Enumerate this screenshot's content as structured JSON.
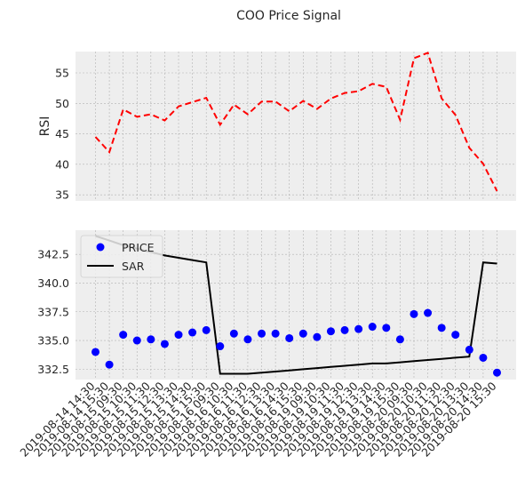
{
  "chart_data": [
    {
      "type": "line",
      "panel": "top",
      "title": "COO Price Signal",
      "xlabel": "",
      "ylabel": "RSI",
      "ylim": [
        34.0,
        58.5
      ],
      "yticks": [
        35,
        40,
        45,
        50,
        55
      ],
      "grid": true,
      "series": [
        {
          "color": "#ff0000",
          "linestyle": "dashed",
          "values": [
            44.5,
            42.0,
            49.0,
            47.8,
            48.2,
            47.2,
            49.5,
            50.2,
            50.9,
            46.5,
            49.8,
            48.2,
            50.3,
            50.3,
            48.7,
            50.4,
            49.1,
            50.8,
            51.7,
            52.0,
            53.2,
            52.7,
            47.3,
            57.4,
            58.3,
            50.8,
            48.1,
            42.7,
            40.1,
            35.6
          ]
        }
      ]
    },
    {
      "type": "line",
      "panel": "bottom",
      "xlabel": "",
      "ylabel": "",
      "ylim": [
        331.6,
        344.6
      ],
      "yticks": [
        332.5,
        335.0,
        337.5,
        340.0,
        342.5
      ],
      "ytick_labels": [
        "332.5",
        "335.0",
        "337.5",
        "340.0",
        "342.5"
      ],
      "grid": true,
      "legend_position": "top-left",
      "categories": [
        "2019-08-14 14:30",
        "2019-08-14 15:30",
        "2019-08-15 09:30",
        "2019-08-15 10:30",
        "2019-08-15 11:30",
        "2019-08-15 12:30",
        "2019-08-15 13:30",
        "2019-08-15 14:30",
        "2019-08-15 15:30",
        "2019-08-16 09:30",
        "2019-08-16 10:30",
        "2019-08-16 11:30",
        "2019-08-16 12:30",
        "2019-08-16 13:30",
        "2019-08-16 14:30",
        "2019-08-16 15:30",
        "2019-08-19 09:30",
        "2019-08-19 10:30",
        "2019-08-19 11:30",
        "2019-08-19 12:30",
        "2019-08-19 13:30",
        "2019-08-19 14:30",
        "2019-08-19 15:30",
        "2019-08-20 09:30",
        "2019-08-20 10:30",
        "2019-08-20 11:30",
        "2019-08-20 12:30",
        "2019-08-20 13:30",
        "2019-08-20 14:30",
        "2019-08-20 15:30"
      ],
      "series": [
        {
          "name": "PRICE",
          "color": "#0000ff",
          "marker": "circle",
          "values": [
            334.0,
            332.9,
            335.5,
            335.0,
            335.1,
            334.7,
            335.5,
            335.7,
            335.9,
            334.5,
            335.6,
            335.1,
            335.6,
            335.6,
            335.2,
            335.6,
            335.3,
            335.8,
            335.9,
            336.0,
            336.2,
            336.1,
            335.1,
            337.3,
            337.4,
            336.1,
            335.5,
            334.2,
            333.5,
            332.2
          ]
        },
        {
          "name": "SAR",
          "color": "#000000",
          "linestyle": "solid",
          "values": [
            344.1,
            343.7,
            343.3,
            343.0,
            342.7,
            342.4,
            342.2,
            342.0,
            341.8,
            332.1,
            332.1,
            332.1,
            332.2,
            332.3,
            332.4,
            332.5,
            332.6,
            332.7,
            332.8,
            332.9,
            333.0,
            333.0,
            333.1,
            333.2,
            333.3,
            333.4,
            333.5,
            333.6,
            341.8,
            341.7
          ]
        }
      ]
    }
  ]
}
